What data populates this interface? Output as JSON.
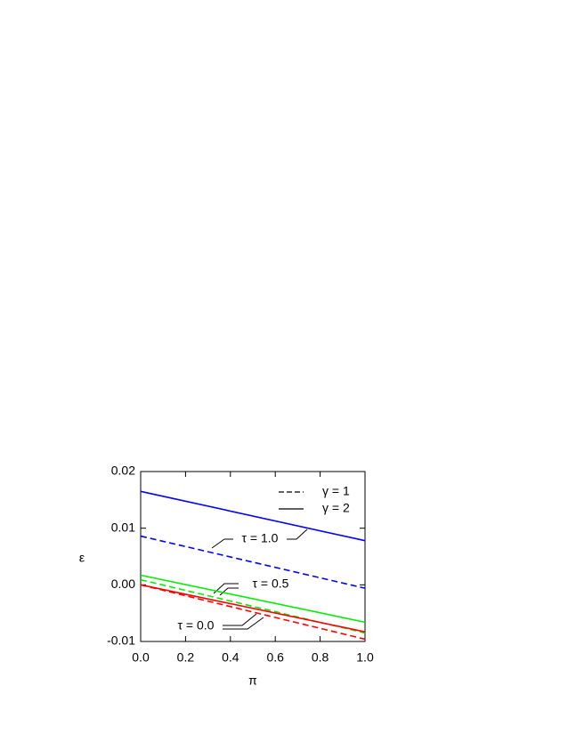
{
  "chart_data": {
    "type": "line",
    "xlabel": "π",
    "ylabel": "ε",
    "xlim": [
      0,
      1
    ],
    "ylim": [
      -0.01,
      0.02
    ],
    "xticks": [
      {
        "value": 0,
        "label": "0.0"
      },
      {
        "value": 0.2,
        "label": "0.2"
      },
      {
        "value": 0.4,
        "label": "0.4"
      },
      {
        "value": 0.6,
        "label": "0.6"
      },
      {
        "value": 0.8,
        "label": "0.8"
      },
      {
        "value": 1,
        "label": "1.0"
      }
    ],
    "yticks": [
      -0.01,
      {
        "value": 0,
        "label": "0.00"
      },
      0.01,
      0.02
    ],
    "legend_position": "upper right",
    "legend": [
      {
        "label": "γ = 1",
        "dashed": true
      },
      {
        "label": "γ = 2",
        "dashed": false
      }
    ],
    "series": [
      {
        "color": "#0000ff",
        "dashed": false,
        "x": [
          0,
          1
        ],
        "values": [
          0.0165,
          0.0078
        ]
      },
      {
        "color": "#0000ff",
        "dashed": true,
        "x": [
          0,
          1
        ],
        "values": [
          0.0086,
          -0.0006
        ]
      },
      {
        "color": "#00ee00",
        "dashed": false,
        "x": [
          0,
          1
        ],
        "values": [
          0.0017,
          -0.0066
        ]
      },
      {
        "color": "#00ee00",
        "dashed": true,
        "x": [
          0,
          1
        ],
        "values": [
          0.0009,
          -0.0085
        ]
      },
      {
        "color": "#ff0000",
        "dashed": false,
        "x": [
          0,
          1
        ],
        "values": [
          0.0,
          -0.0083
        ]
      },
      {
        "color": "#ff0000",
        "dashed": true,
        "x": [
          0,
          1
        ],
        "values": [
          0.0,
          -0.0096
        ]
      }
    ],
    "annotations": [
      "τ = 1.0",
      "τ = 0.5",
      "τ = 0.0"
    ]
  }
}
